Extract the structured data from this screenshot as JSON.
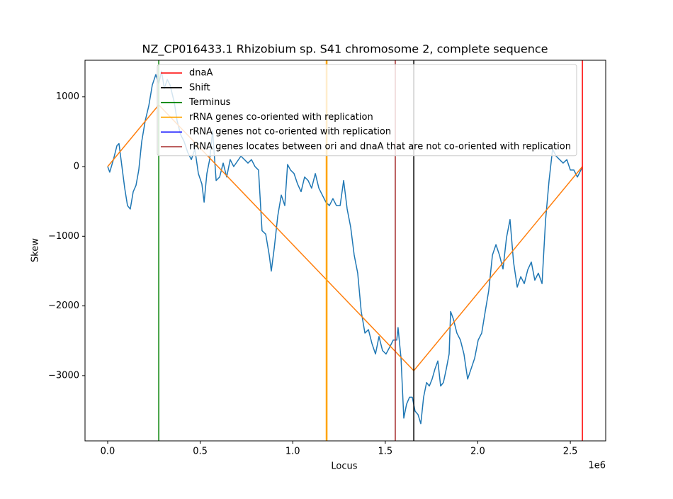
{
  "chart_data": {
    "type": "line",
    "title": "NZ_CP016433.1 Rhizobium sp. S41 chromosome 2, complete sequence",
    "x_label": "Locus",
    "y_label": "Skew",
    "x_offset_label": "1e6",
    "xlim": [
      -122500,
      2691000
    ],
    "ylim": [
      -3937,
      1526
    ],
    "xticks": [
      {
        "value": 0,
        "label": "0.0"
      },
      {
        "value": 500000,
        "label": "0.5"
      },
      {
        "value": 1000000,
        "label": "1.0"
      },
      {
        "value": 1500000,
        "label": "1.5"
      },
      {
        "value": 2000000,
        "label": "2.0"
      },
      {
        "value": 2500000,
        "label": "2.5"
      }
    ],
    "yticks": [
      {
        "value": -3000,
        "label": "−3000"
      },
      {
        "value": -2000,
        "label": "−2000"
      },
      {
        "value": -1000,
        "label": "−1000"
      },
      0,
      1000
    ],
    "series": [
      {
        "color": "#1f77b4",
        "x": [
          0,
          11000,
          31000,
          50000,
          61000,
          77000,
          92000,
          107000,
          122000,
          138000,
          153000,
          168000,
          184000,
          203000,
          222000,
          241000,
          260000,
          276000,
          291000,
          306000,
          322000,
          337000,
          360000,
          375000,
          394000,
          413000,
          433000,
          452000,
          471000,
          490000,
          509000,
          521000,
          536000,
          551000,
          567000,
          586000,
          605000,
          624000,
          643000,
          662000,
          681000,
          720000,
          758000,
          777000,
          796000,
          815000,
          834000,
          854000,
          873000,
          884000,
          900000,
          919000,
          938000,
          957000,
          972000,
          988000,
          1007000,
          1026000,
          1045000,
          1064000,
          1083000,
          1102000,
          1122000,
          1141000,
          1160000,
          1179000,
          1198000,
          1217000,
          1236000,
          1256000,
          1275000,
          1294000,
          1313000,
          1332000,
          1351000,
          1370000,
          1390000,
          1409000,
          1428000,
          1447000,
          1466000,
          1485000,
          1504000,
          1524000,
          1543000,
          1562000,
          1569000,
          1585000,
          1600000,
          1615000,
          1631000,
          1646000,
          1661000,
          1677000,
          1692000,
          1707000,
          1723000,
          1738000,
          1753000,
          1769000,
          1784000,
          1799000,
          1814000,
          1830000,
          1845000,
          1853000,
          1868000,
          1887000,
          1906000,
          1925000,
          1945000,
          1964000,
          1983000,
          2002000,
          2021000,
          2040000,
          2059000,
          2079000,
          2098000,
          2117000,
          2136000,
          2155000,
          2174000,
          2193000,
          2213000,
          2232000,
          2251000,
          2270000,
          2289000,
          2308000,
          2327000,
          2347000,
          2366000,
          2385000,
          2404000,
          2423000,
          2442000,
          2461000,
          2481000,
          2500000,
          2519000,
          2538000,
          2557000,
          2565000
        ],
        "values": [
          0,
          -80,
          100,
          300,
          330,
          0,
          -310,
          -560,
          -610,
          -360,
          -270,
          -50,
          360,
          660,
          870,
          1170,
          1320,
          1190,
          1370,
          1120,
          1250,
          1170,
          920,
          660,
          460,
          360,
          200,
          100,
          250,
          -100,
          -250,
          -510,
          -100,
          100,
          510,
          -200,
          -150,
          50,
          -150,
          100,
          0,
          150,
          50,
          100,
          0,
          -50,
          -920,
          -970,
          -1270,
          -1500,
          -1170,
          -710,
          -410,
          -560,
          30,
          -50,
          -100,
          -250,
          -360,
          -150,
          -200,
          -310,
          -100,
          -310,
          -410,
          -510,
          -560,
          -460,
          -560,
          -560,
          -200,
          -610,
          -870,
          -1270,
          -1530,
          -2080,
          -2390,
          -2340,
          -2540,
          -2690,
          -2440,
          -2640,
          -2690,
          -2590,
          -2490,
          -2490,
          -2310,
          -2750,
          -3610,
          -3410,
          -3310,
          -3310,
          -3510,
          -3560,
          -3690,
          -3310,
          -3100,
          -3150,
          -3050,
          -2900,
          -2790,
          -3150,
          -3100,
          -2900,
          -2690,
          -2080,
          -2190,
          -2390,
          -2490,
          -2690,
          -3050,
          -2900,
          -2750,
          -2490,
          -2390,
          -2080,
          -1780,
          -1270,
          -1120,
          -1270,
          -1470,
          -1020,
          -760,
          -1370,
          -1730,
          -1580,
          -1680,
          -1480,
          -1370,
          -1630,
          -1530,
          -1680,
          -770,
          -200,
          250,
          150,
          100,
          50,
          100,
          -50,
          -50,
          -150,
          -50,
          0
        ]
      },
      {
        "color": "#ff7f0e",
        "x": [
          0,
          276000,
          1654000,
          2565000
        ],
        "values": [
          0,
          885,
          -2930,
          0
        ]
      }
    ],
    "vlines": [
      {
        "name": "dnaA",
        "color": "red",
        "x": [
          2565000
        ]
      },
      {
        "name": "Shift",
        "color": "black",
        "x": [
          1654000
        ]
      },
      {
        "name": "Terminus",
        "color": "green",
        "x": [
          276000
        ]
      },
      {
        "name": "rRNA genes co-oriented with replication",
        "color": "orange",
        "x": [
          1181000,
          1185000
        ]
      },
      {
        "name": "rRNA genes not co-oriented with replication",
        "color": "blue",
        "x": []
      },
      {
        "name": "rRNA genes locates between ori and dnaA that are not co-oriented with replication",
        "color": "brown",
        "x": [
          1554000
        ]
      }
    ],
    "legend": "upper right"
  }
}
